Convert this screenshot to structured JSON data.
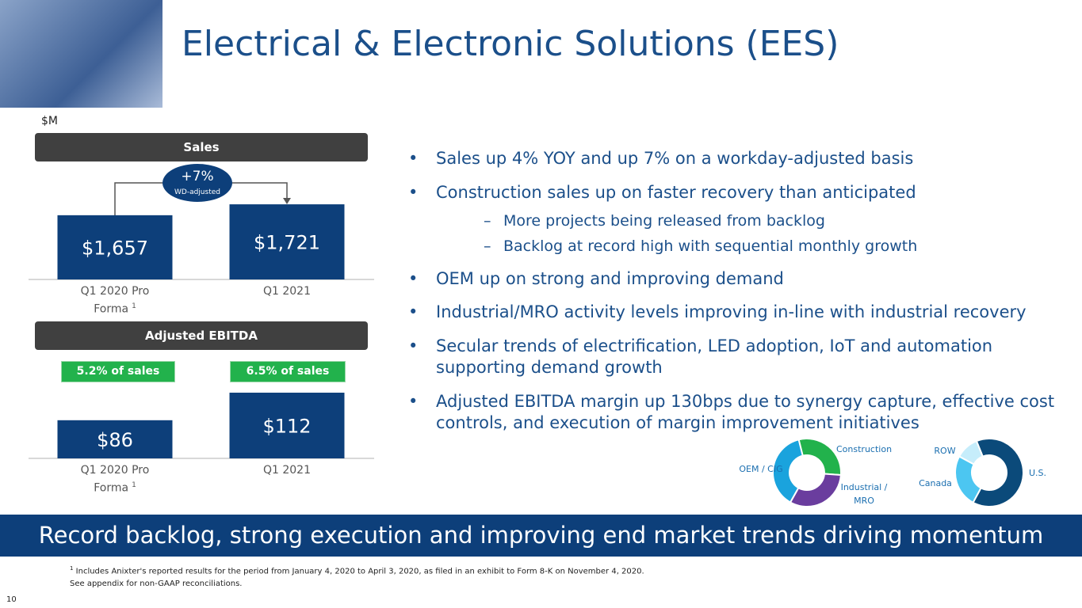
{
  "title": "Electrical & Electronic Solutions (EES)",
  "unit_label": "$M",
  "chart_data": [
    {
      "type": "bar",
      "title": "Sales",
      "categories": [
        "Q1 2020 Pro Forma",
        "Q1 2021"
      ],
      "category_marks": [
        "1",
        null
      ],
      "values": [
        1657,
        1721
      ],
      "value_labels": [
        "$1,657",
        "$1,721"
      ],
      "color": "#0d3f7a",
      "ylim": [
        1280,
        1740
      ],
      "annotation": {
        "label": "+7%",
        "sublabel": "WD-adjusted"
      }
    },
    {
      "type": "bar",
      "title": "Adjusted EBITDA",
      "categories": [
        "Q1 2020 Pro Forma",
        "Q1 2021"
      ],
      "category_marks": [
        "1",
        null
      ],
      "values": [
        86,
        112
      ],
      "value_labels": [
        "$86",
        "$112"
      ],
      "color": "#0d3f7a",
      "ylim": [
        50,
        115
      ],
      "annotations": [
        "5.2% of sales",
        "6.5% of sales"
      ]
    },
    {
      "type": "pie",
      "categories": [
        "Construction",
        "Industrial / MRO",
        "OEM / CIG"
      ],
      "values": [
        30,
        32,
        38
      ],
      "colors": [
        "#22b24c",
        "#6a3d9e",
        "#1aa3dd"
      ]
    },
    {
      "type": "pie",
      "categories": [
        "U.S.",
        "Canada",
        "ROW"
      ],
      "values": [
        64,
        25,
        11
      ],
      "colors": [
        "#0b4a7a",
        "#4cc6f1",
        "#c6edfb"
      ]
    }
  ],
  "bullets": [
    {
      "level": 1,
      "text": "Sales up 4% YOY and up 7% on a workday-adjusted basis"
    },
    {
      "level": 1,
      "text": "Construction sales up on faster recovery than anticipated"
    },
    {
      "level": 2,
      "text": "More projects being released from backlog"
    },
    {
      "level": 2,
      "text": "Backlog at record high with sequential monthly growth"
    },
    {
      "level": 1,
      "text": "OEM up on strong and improving demand"
    },
    {
      "level": 1,
      "text": "Industrial/MRO activity levels improving in-line with industrial recovery"
    },
    {
      "level": 1,
      "text": "Secular trends of electrification, LED adoption, IoT and automation supporting demand growth"
    },
    {
      "level": 1,
      "text": "Adjusted EBITDA margin up 130bps due to synergy capture, effective cost controls, and execution of margin improvement initiatives"
    }
  ],
  "banner": "Record backlog, strong execution and improving end market trends driving momentum",
  "footnotes": [
    {
      "mark": "1",
      "text": "Includes Anixter's reported results for the period from January 4, 2020 to April 3, 2020, as filed in an exhibit to Form 8-K on November 4, 2020."
    },
    {
      "mark": null,
      "text": "See appendix for non-GAAP reconciliations."
    }
  ],
  "page_number": "10"
}
